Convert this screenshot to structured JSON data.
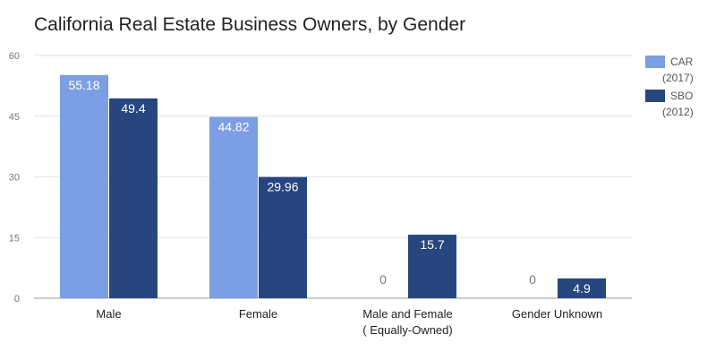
{
  "chart_data": {
    "type": "bar",
    "title": "California Real Estate Business Owners, by Gender",
    "xlabel": "",
    "ylabel": "",
    "categories": [
      [
        "Male"
      ],
      [
        "Female"
      ],
      [
        "Male and Female",
        "( Equally-Owned)"
      ],
      [
        "Gender Unknown"
      ]
    ],
    "series": [
      {
        "name": "CAR",
        "legend_sub": "(2017)",
        "color": "#7b9ee4",
        "values": [
          55.18,
          44.82,
          0,
          0
        ],
        "labels": [
          "55.18",
          "44.82",
          "0",
          "0"
        ]
      },
      {
        "name": "SBO",
        "legend_sub": "(2012)",
        "color": "#27467f",
        "values": [
          49.4,
          29.96,
          15.7,
          4.9
        ],
        "labels": [
          "49.4",
          "29.96",
          "15.7",
          "4.9"
        ]
      }
    ],
    "ylim": [
      0,
      60
    ],
    "yticks": [
      0,
      15,
      30,
      45,
      60
    ],
    "grid": true,
    "legend_position": "right"
  }
}
